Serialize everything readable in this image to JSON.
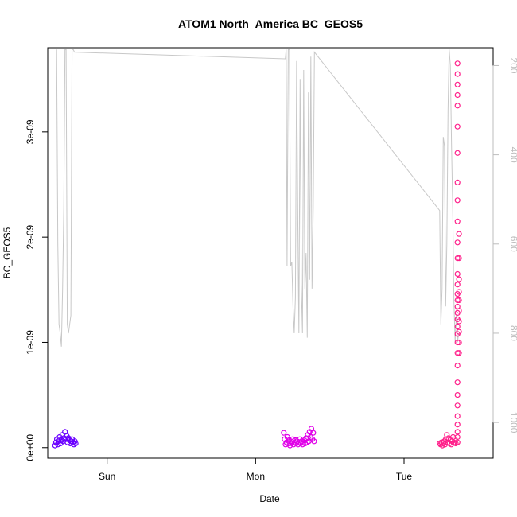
{
  "chart_data": {
    "type": "scatter",
    "title": "ATOM1 North_America BC_GEOS5",
    "xlabel": "Date",
    "ylabel": "BC_GEOS5",
    "xlim": [
      0,
      15
    ],
    "ylim": [
      -1e-10,
      3.8e-09
    ],
    "x_ticks": [
      {
        "value": 2,
        "label": "Sun"
      },
      {
        "value": 7,
        "label": "Mon"
      },
      {
        "value": 12,
        "label": "Tue"
      }
    ],
    "y_ticks": [
      {
        "value": 0,
        "label": "0e+00"
      },
      {
        "value": 1e-09,
        "label": "1e-09"
      },
      {
        "value": 2e-09,
        "label": "2e-09"
      },
      {
        "value": 3e-09,
        "label": "3e-09"
      }
    ],
    "right_axis": {
      "lim": [
        1080,
        160
      ],
      "reversed": true,
      "ticks": [
        {
          "value": 200,
          "label": "200"
        },
        {
          "value": 400,
          "label": "400"
        },
        {
          "value": 600,
          "label": "600"
        },
        {
          "value": 800,
          "label": "800"
        },
        {
          "value": 1000,
          "label": "1000"
        }
      ]
    },
    "profile_line": {
      "color": "#c8c8c8",
      "points": [
        [
          0.3,
          164
        ],
        [
          0.34,
          600
        ],
        [
          0.38,
          780
        ],
        [
          0.42,
          800
        ],
        [
          0.46,
          830
        ],
        [
          0.5,
          700
        ],
        [
          0.54,
          520
        ],
        [
          0.58,
          164
        ],
        [
          0.62,
          164
        ],
        [
          0.66,
          780
        ],
        [
          0.7,
          800
        ],
        [
          0.74,
          780
        ],
        [
          0.78,
          760
        ],
        [
          0.82,
          164
        ],
        [
          0.86,
          164
        ],
        [
          0.9,
          170
        ],
        [
          8.0,
          185
        ],
        [
          8.03,
          164
        ],
        [
          8.06,
          650
        ],
        [
          8.1,
          164
        ],
        [
          8.14,
          164
        ],
        [
          8.18,
          650
        ],
        [
          8.22,
          640
        ],
        [
          8.26,
          740
        ],
        [
          8.3,
          800
        ],
        [
          8.34,
          720
        ],
        [
          8.38,
          190
        ],
        [
          8.42,
          520
        ],
        [
          8.46,
          800
        ],
        [
          8.5,
          230
        ],
        [
          8.54,
          690
        ],
        [
          8.58,
          800
        ],
        [
          8.62,
          210
        ],
        [
          8.66,
          700
        ],
        [
          8.7,
          620
        ],
        [
          8.74,
          810
        ],
        [
          8.78,
          260
        ],
        [
          8.82,
          680
        ],
        [
          8.86,
          180
        ],
        [
          8.9,
          700
        ],
        [
          8.94,
          520
        ],
        [
          8.98,
          170
        ],
        [
          13.2,
          525
        ],
        [
          13.24,
          780
        ],
        [
          13.28,
          700
        ],
        [
          13.32,
          360
        ],
        [
          13.36,
          380
        ],
        [
          13.4,
          740
        ],
        [
          13.44,
          600
        ],
        [
          13.48,
          300
        ],
        [
          13.52,
          164
        ],
        [
          13.56,
          200
        ],
        [
          13.6,
          380
        ],
        [
          13.64,
          520
        ],
        [
          13.68,
          730
        ],
        [
          13.72,
          820
        ],
        [
          13.76,
          760
        ],
        [
          13.8,
          820
        ],
        [
          13.84,
          800
        ]
      ]
    },
    "series": [
      {
        "color": "#6a00ff",
        "x_range": [
          0.25,
          0.95
        ],
        "values": [
          [
            0.25,
            2e-11
          ],
          [
            0.28,
            5e-11
          ],
          [
            0.31,
            8e-11
          ],
          [
            0.34,
            3e-11
          ],
          [
            0.37,
            6e-11
          ],
          [
            0.4,
            1e-10
          ],
          [
            0.43,
            4e-11
          ],
          [
            0.46,
            7e-11
          ],
          [
            0.49,
            1.2e-10
          ],
          [
            0.52,
            6e-11
          ],
          [
            0.55,
            9e-11
          ],
          [
            0.58,
            1.5e-10
          ],
          [
            0.61,
            8e-11
          ],
          [
            0.64,
            1.1e-10
          ],
          [
            0.67,
            5e-11
          ],
          [
            0.7,
            9e-11
          ],
          [
            0.73,
            7e-11
          ],
          [
            0.76,
            4e-11
          ],
          [
            0.79,
            6e-11
          ],
          [
            0.82,
            8e-11
          ],
          [
            0.85,
            5e-11
          ],
          [
            0.88,
            3e-11
          ],
          [
            0.91,
            6e-11
          ],
          [
            0.94,
            4e-11
          ]
        ]
      },
      {
        "color": "#e000e8",
        "x_range": [
          7.95,
          9.0
        ],
        "values": [
          [
            7.95,
            1.4e-10
          ],
          [
            7.98,
            8e-11
          ],
          [
            8.01,
            3e-11
          ],
          [
            8.04,
            5e-11
          ],
          [
            8.07,
            1e-10
          ],
          [
            8.1,
            4e-11
          ],
          [
            8.13,
            7e-11
          ],
          [
            8.16,
            2e-11
          ],
          [
            8.19,
            6e-11
          ],
          [
            8.22,
            4e-11
          ],
          [
            8.25,
            8e-11
          ],
          [
            8.28,
            3e-11
          ],
          [
            8.31,
            5e-11
          ],
          [
            8.34,
            7e-11
          ],
          [
            8.37,
            4e-11
          ],
          [
            8.4,
            6e-11
          ],
          [
            8.43,
            3e-11
          ],
          [
            8.46,
            5e-11
          ],
          [
            8.49,
            8e-11
          ],
          [
            8.52,
            4e-11
          ],
          [
            8.55,
            6e-11
          ],
          [
            8.58,
            3e-11
          ],
          [
            8.61,
            5e-11
          ],
          [
            8.64,
            7e-11
          ],
          [
            8.67,
            4e-11
          ],
          [
            8.7,
            9e-11
          ],
          [
            8.73,
            5e-11
          ],
          [
            8.76,
            1.2e-10
          ],
          [
            8.79,
            6e-11
          ],
          [
            8.82,
            1.5e-10
          ],
          [
            8.85,
            1e-10
          ],
          [
            8.88,
            1.8e-10
          ],
          [
            8.91,
            8e-11
          ],
          [
            8.94,
            1.4e-10
          ],
          [
            8.97,
            6e-11
          ]
        ]
      },
      {
        "color": "#ff1f8a",
        "x_range": [
          13.2,
          13.9
        ],
        "values": [
          [
            13.2,
            4e-11
          ],
          [
            13.23,
            3e-11
          ],
          [
            13.26,
            5e-11
          ],
          [
            13.29,
            2e-11
          ],
          [
            13.32,
            4e-11
          ],
          [
            13.35,
            6e-11
          ],
          [
            13.38,
            3e-11
          ],
          [
            13.41,
            8e-11
          ],
          [
            13.44,
            1.2e-10
          ],
          [
            13.47,
            5e-11
          ],
          [
            13.5,
            9e-11
          ],
          [
            13.53,
            4e-11
          ],
          [
            13.56,
            7e-11
          ],
          [
            13.59,
            3e-11
          ],
          [
            13.62,
            6e-11
          ],
          [
            13.65,
            1e-10
          ],
          [
            13.68,
            5e-11
          ],
          [
            13.71,
            8e-11
          ],
          [
            13.74,
            4e-11
          ],
          [
            13.8,
            5e-11
          ],
          [
            13.8,
            1e-10
          ],
          [
            13.8,
            1.5e-10
          ],
          [
            13.8,
            2.2e-10
          ],
          [
            13.8,
            3e-10
          ],
          [
            13.8,
            4e-10
          ],
          [
            13.8,
            5e-10
          ],
          [
            13.8,
            6.2e-10
          ],
          [
            13.8,
            7.8e-10
          ],
          [
            13.8,
            9e-10
          ],
          [
            13.8,
            1e-09
          ],
          [
            13.8,
            1.08e-09
          ],
          [
            13.8,
            1.15e-09
          ],
          [
            13.8,
            1.22e-09
          ],
          [
            13.8,
            1.28e-09
          ],
          [
            13.8,
            1.34e-09
          ],
          [
            13.8,
            1.4e-09
          ],
          [
            13.8,
            1.46e-09
          ],
          [
            13.8,
            1.55e-09
          ],
          [
            13.8,
            1.65e-09
          ],
          [
            13.8,
            1.8e-09
          ],
          [
            13.8,
            1.95e-09
          ],
          [
            13.8,
            2.15e-09
          ],
          [
            13.8,
            2.35e-09
          ],
          [
            13.8,
            2.52e-09
          ],
          [
            13.8,
            2.8e-09
          ],
          [
            13.8,
            3.05e-09
          ],
          [
            13.8,
            3.25e-09
          ],
          [
            13.8,
            3.35e-09
          ],
          [
            13.8,
            3.45e-09
          ],
          [
            13.8,
            3.55e-09
          ],
          [
            13.8,
            3.65e-09
          ],
          [
            13.85,
            9e-10
          ],
          [
            13.85,
            1e-09
          ],
          [
            13.85,
            1.1e-09
          ],
          [
            13.85,
            1.2e-09
          ],
          [
            13.85,
            1.3e-09
          ],
          [
            13.85,
            1.4e-09
          ],
          [
            13.85,
            1.48e-09
          ],
          [
            13.85,
            1.6e-09
          ],
          [
            13.85,
            1.8e-09
          ],
          [
            13.85,
            2.03e-09
          ]
        ]
      }
    ]
  }
}
